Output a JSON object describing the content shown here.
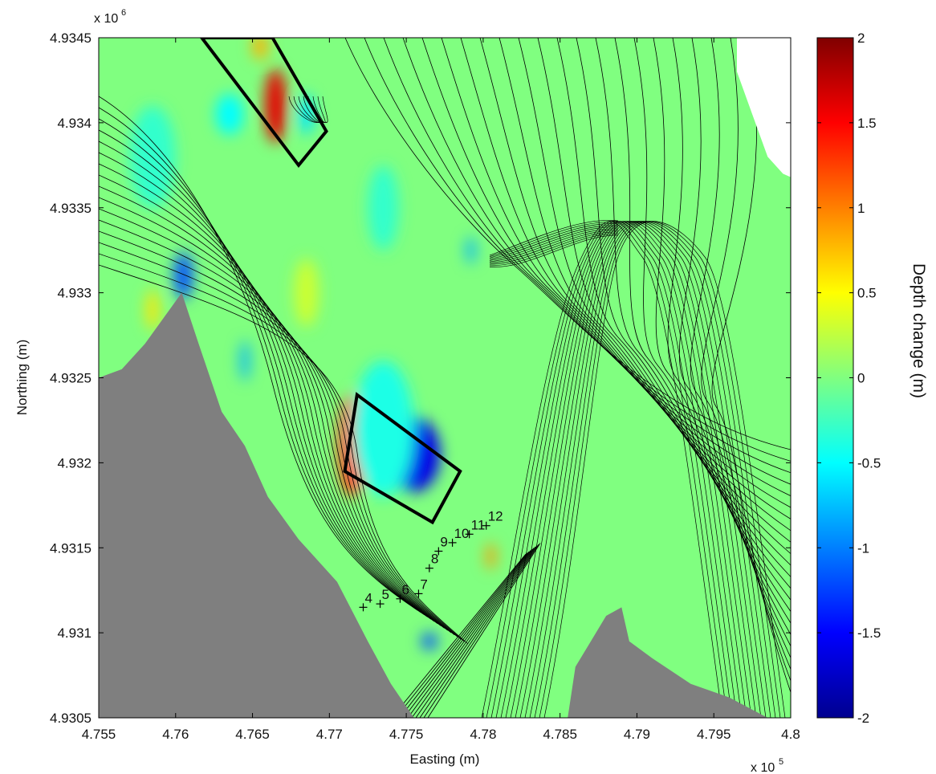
{
  "chart_data": {
    "type": "heatmap",
    "xlabel": "Easting (m)",
    "ylabel": "Northing (m)",
    "x_exponent_label": "x 10",
    "x_exponent_power": "5",
    "y_exponent_label": "x 10",
    "y_exponent_power": "6",
    "xlim": [
      4.755,
      4.8
    ],
    "ylim": [
      4.9305,
      4.9345
    ],
    "x_ticks": [
      {
        "value": 4.755,
        "label": "4.755"
      },
      {
        "value": 4.76,
        "label": "4.76"
      },
      {
        "value": 4.765,
        "label": "4.765"
      },
      {
        "value": 4.77,
        "label": "4.77"
      },
      {
        "value": 4.775,
        "label": "4.775"
      },
      {
        "value": 4.78,
        "label": "4.78"
      },
      {
        "value": 4.785,
        "label": "4.785"
      },
      {
        "value": 4.79,
        "label": "4.79"
      },
      {
        "value": 4.795,
        "label": "4.795"
      },
      {
        "value": 4.8,
        "label": "4.8"
      }
    ],
    "y_ticks": [
      {
        "value": 4.9305,
        "label": "4.9305"
      },
      {
        "value": 4.931,
        "label": "4.931"
      },
      {
        "value": 4.9315,
        "label": "4.9315"
      },
      {
        "value": 4.932,
        "label": "4.932"
      },
      {
        "value": 4.9325,
        "label": "4.9325"
      },
      {
        "value": 4.933,
        "label": "4.933"
      },
      {
        "value": 4.9335,
        "label": "4.9335"
      },
      {
        "value": 4.934,
        "label": "4.934"
      },
      {
        "value": 4.9345,
        "label": "4.9345"
      }
    ],
    "colorbar": {
      "label": "Depth change (m)",
      "range": [
        -2,
        2
      ],
      "colormap": "jet",
      "ticks": [
        {
          "value": 2,
          "label": "2"
        },
        {
          "value": 1.5,
          "label": "1.5"
        },
        {
          "value": 1,
          "label": "1"
        },
        {
          "value": 0.5,
          "label": "0.5"
        },
        {
          "value": 0,
          "label": "0"
        },
        {
          "value": -0.5,
          "label": "-0.5"
        },
        {
          "value": -1,
          "label": "-1"
        },
        {
          "value": -1.5,
          "label": "-1.5"
        },
        {
          "value": -2,
          "label": "-2"
        }
      ]
    },
    "colors": {
      "land": "#7f7f7f",
      "zero_change": "#80ff80",
      "contour": "#000000",
      "region_outline": "#000000"
    },
    "blobs": [
      {
        "x": 4.7665,
        "y": 4.9341,
        "value": 1.6,
        "rx": 0.0007,
        "ry": 0.00022
      },
      {
        "x": 4.7685,
        "y": 4.93405,
        "value": -0.6,
        "rx": 0.0005,
        "ry": 0.00012
      },
      {
        "x": 4.7635,
        "y": 4.93405,
        "value": -0.5,
        "rx": 0.0009,
        "ry": 0.00012
      },
      {
        "x": 4.7655,
        "y": 4.93445,
        "value": 0.8,
        "rx": 0.0005,
        "ry": 8e-05
      },
      {
        "x": 4.7605,
        "y": 4.9331,
        "value": -1.2,
        "rx": 0.0006,
        "ry": 0.00014
      },
      {
        "x": 4.7585,
        "y": 4.9329,
        "value": 0.6,
        "rx": 0.0004,
        "ry": 0.00012
      },
      {
        "x": 4.7645,
        "y": 4.9326,
        "value": -0.8,
        "rx": 0.0003,
        "ry": 0.00012
      },
      {
        "x": 4.7715,
        "y": 4.9321,
        "value": 1.3,
        "rx": 0.0009,
        "ry": 0.0003
      },
      {
        "x": 4.7755,
        "y": 4.93205,
        "value": -1.6,
        "rx": 0.0017,
        "ry": 0.00022
      },
      {
        "x": 4.7792,
        "y": 4.93325,
        "value": -0.8,
        "rx": 0.0003,
        "ry": 8e-05
      },
      {
        "x": 4.7805,
        "y": 4.93145,
        "value": 0.9,
        "rx": 0.0003,
        "ry": 8e-05
      },
      {
        "x": 4.7765,
        "y": 4.93095,
        "value": -1.2,
        "rx": 0.0005,
        "ry": 5e-05
      },
      {
        "x": 4.7735,
        "y": 4.9322,
        "value": -0.4,
        "rx": 0.002,
        "ry": 0.0004
      },
      {
        "x": 4.7585,
        "y": 4.9338,
        "value": -0.3,
        "rx": 0.0015,
        "ry": 0.0003
      },
      {
        "x": 4.7685,
        "y": 4.933,
        "value": 0.3,
        "rx": 0.0008,
        "ry": 0.0002
      },
      {
        "x": 4.7735,
        "y": 4.9335,
        "value": -0.3,
        "rx": 0.001,
        "ry": 0.00025
      }
    ],
    "land_regions": [
      [
        [
          4.755,
          4.9325
        ],
        [
          4.7565,
          4.93255
        ],
        [
          4.758,
          4.9327
        ],
        [
          4.7592,
          4.93285
        ],
        [
          4.7604,
          4.933
        ],
        [
          4.7615,
          4.9327
        ],
        [
          4.763,
          4.9323
        ],
        [
          4.7645,
          4.9321
        ],
        [
          4.766,
          4.9318
        ],
        [
          4.768,
          4.93155
        ],
        [
          4.7705,
          4.9313
        ],
        [
          4.7725,
          4.93095
        ],
        [
          4.774,
          4.9307
        ],
        [
          4.7755,
          4.9305
        ],
        [
          4.755,
          4.9305
        ]
      ],
      [
        [
          4.7855,
          4.9305
        ],
        [
          4.786,
          4.9308
        ],
        [
          4.787,
          4.93095
        ],
        [
          4.788,
          4.9311
        ],
        [
          4.789,
          4.93115
        ],
        [
          4.7895,
          4.93095
        ],
        [
          4.791,
          4.93085
        ],
        [
          4.7935,
          4.9307
        ],
        [
          4.796,
          4.93062
        ],
        [
          4.7985,
          4.9305
        ]
      ]
    ],
    "mask_region": [
      [
        4.7965,
        4.9345
      ],
      [
        4.8,
        4.9345
      ],
      [
        4.8,
        4.93368
      ],
      [
        4.7995,
        4.9337
      ],
      [
        4.7985,
        4.9338
      ],
      [
        4.7975,
        4.93405
      ],
      [
        4.7965,
        4.9343
      ]
    ],
    "rectangles": [
      [
        [
          4.7617,
          4.9345
        ],
        [
          4.7663,
          4.9345
        ],
        [
          4.7698,
          4.93395
        ],
        [
          4.768,
          4.93375
        ]
      ],
      [
        [
          4.7718,
          4.9324
        ],
        [
          4.7785,
          4.93195
        ],
        [
          4.7767,
          4.93165
        ],
        [
          4.771,
          4.93195
        ]
      ]
    ],
    "markers": [
      {
        "label": "4",
        "x": 4.7722,
        "y": 4.93115
      },
      {
        "label": "5",
        "x": 4.7733,
        "y": 4.93117
      },
      {
        "label": "6",
        "x": 4.7746,
        "y": 4.9312
      },
      {
        "label": "7",
        "x": 4.7758,
        "y": 4.93123
      },
      {
        "label": "8",
        "x": 4.7765,
        "y": 4.93138
      },
      {
        "label": "9",
        "x": 4.7771,
        "y": 4.93148
      },
      {
        "label": "10",
        "x": 4.778,
        "y": 4.93153
      },
      {
        "label": "11",
        "x": 4.7791,
        "y": 4.93158
      },
      {
        "label": "12",
        "x": 4.7802,
        "y": 4.93163
      }
    ]
  }
}
